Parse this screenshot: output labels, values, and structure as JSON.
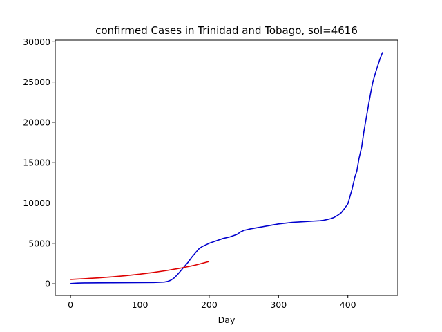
{
  "chart_data": {
    "type": "line",
    "title": "confirmed Cases in Trinidad and Tobago, sol=4616",
    "xlabel": "Day",
    "ylabel": "",
    "xlim": [
      -22,
      472
    ],
    "ylim": [
      -1450,
      30200
    ],
    "xticks": [
      0,
      100,
      200,
      300,
      400
    ],
    "yticks": [
      0,
      5000,
      10000,
      15000,
      20000,
      25000,
      30000
    ],
    "grid": false,
    "series": [
      {
        "color": "#0000cd",
        "x": [
          0,
          10,
          20,
          40,
          60,
          80,
          100,
          120,
          135,
          140,
          145,
          150,
          155,
          160,
          163,
          166,
          170,
          175,
          180,
          185,
          190,
          200,
          210,
          220,
          230,
          240,
          245,
          250,
          260,
          270,
          280,
          290,
          300,
          310,
          320,
          330,
          340,
          350,
          360,
          365,
          370,
          375,
          380,
          385,
          390,
          395,
          400,
          403,
          406,
          410,
          413,
          416,
          420,
          423,
          426,
          430,
          433,
          436,
          440,
          443,
          446,
          450
        ],
        "y": [
          30,
          80,
          100,
          110,
          120,
          130,
          140,
          150,
          200,
          280,
          450,
          750,
          1200,
          1700,
          2000,
          2300,
          2700,
          3300,
          3800,
          4300,
          4600,
          5000,
          5300,
          5600,
          5800,
          6100,
          6400,
          6600,
          6800,
          6950,
          7100,
          7250,
          7400,
          7500,
          7600,
          7650,
          7700,
          7750,
          7800,
          7850,
          7950,
          8050,
          8200,
          8450,
          8750,
          9300,
          9900,
          10800,
          11700,
          13200,
          14000,
          15500,
          17000,
          18800,
          20300,
          22300,
          23700,
          25000,
          26200,
          27000,
          27800,
          28700
        ]
      },
      {
        "color": "#dd0000",
        "x": [
          0,
          20,
          40,
          60,
          80,
          100,
          120,
          140,
          160,
          180,
          200
        ],
        "y": [
          530,
          620,
          720,
          850,
          1000,
          1180,
          1400,
          1650,
          1950,
          2300,
          2750
        ]
      }
    ]
  }
}
